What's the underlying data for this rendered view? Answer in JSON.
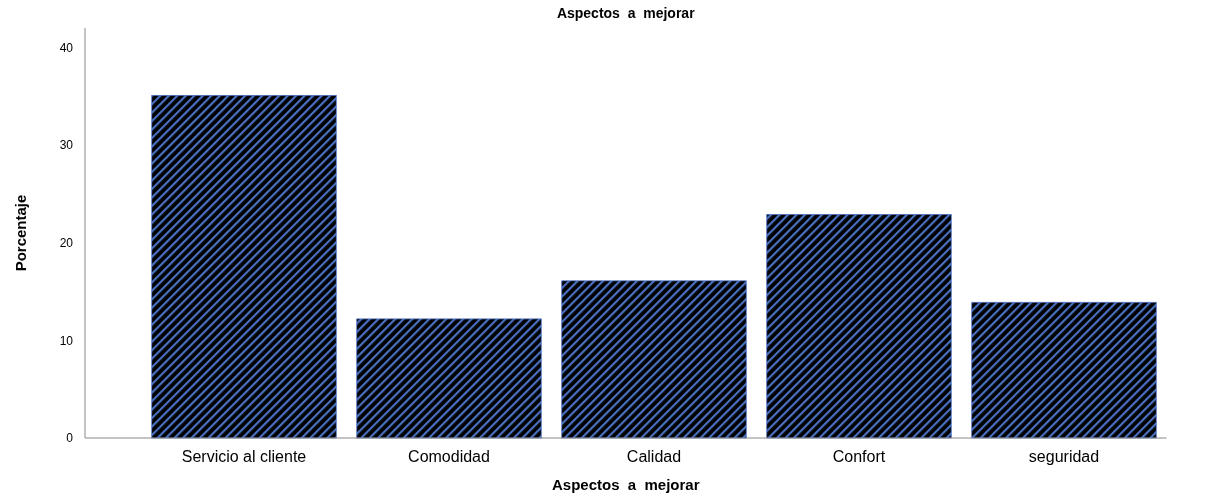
{
  "chart_data": {
    "type": "bar",
    "title": "Aspectos  a  mejorar",
    "xlabel": "Aspectos  a  mejorar",
    "ylabel": "Porcentaje",
    "categories": [
      "Servicio al cliente",
      "Comodidad",
      "Calidad",
      "Confort",
      "seguridad"
    ],
    "values": [
      35.1,
      12.2,
      16.1,
      22.9,
      13.9
    ],
    "color": "#4a70c0",
    "ylim": [
      0,
      42
    ],
    "yticks": [
      0,
      10,
      20,
      30,
      40
    ],
    "grid": false
  }
}
